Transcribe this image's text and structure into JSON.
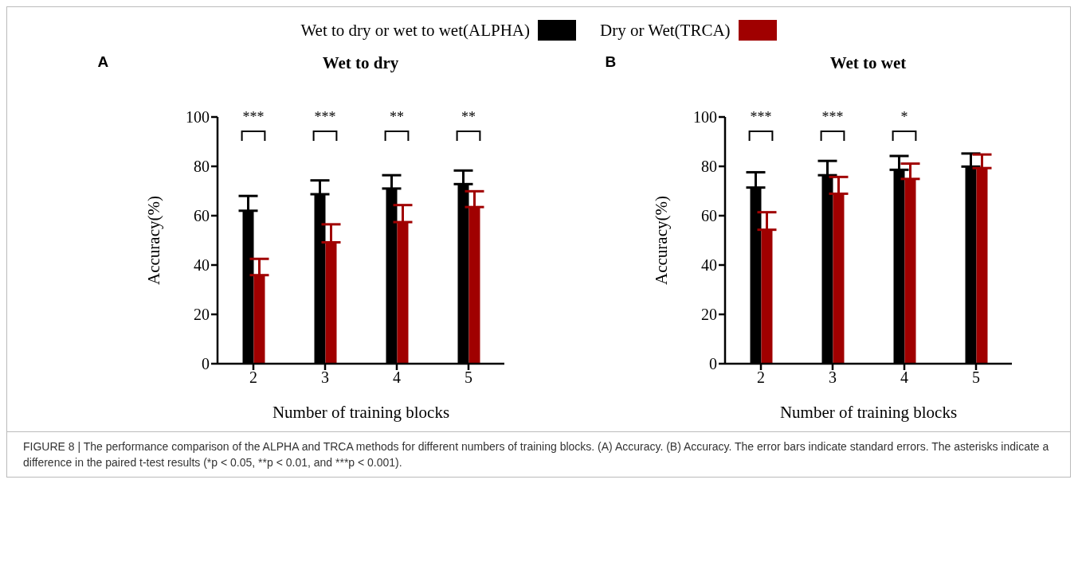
{
  "chart_data": [
    {
      "type": "bar",
      "title": "Wet to dry",
      "xlabel": "Number of training blocks",
      "ylabel": "Accuracy(%)",
      "categories": [
        "2",
        "3",
        "4",
        "5"
      ],
      "series": [
        {
          "name": "Wet to dry or wet to wet(ALPHA)",
          "color": "#000000",
          "values": [
            62.0,
            68.7,
            71.0,
            72.8
          ],
          "errors": [
            [
              62.0,
              68.0
            ],
            [
              68.7,
              74.3
            ],
            [
              71.0,
              76.4
            ],
            [
              72.8,
              78.3
            ]
          ]
        },
        {
          "name": "Dry or Wet(TRCA)",
          "color": "#a00000",
          "values": [
            35.9,
            49.2,
            57.4,
            63.5
          ],
          "errors": [
            [
              35.9,
              42.5
            ],
            [
              49.2,
              56.5
            ],
            [
              57.4,
              64.3
            ],
            [
              63.5,
              69.9
            ]
          ]
        }
      ],
      "ylim": [
        0,
        100
      ],
      "yticks": [
        0,
        20,
        40,
        60,
        80,
        100
      ],
      "grid": false,
      "legend": "top",
      "annotations": [
        "A",
        "***",
        "***",
        "**",
        "**",
        "FIGURE 8 | The performance comparison of the ALPHA and TRCA methods for different numbers of training blocks. (A) Accuracy. (B) Accuracy. The error bars indicate standard errors. The asterisks indicate a difference in the paired t-test results (*p < 0.05, **p < 0.01, and ***p < 0.001)."
      ]
    },
    {
      "type": "bar",
      "title": "Wet to wet",
      "xlabel": "Number of training blocks",
      "ylabel": "Accuracy(%)",
      "categories": [
        "2",
        "3",
        "4",
        "5"
      ],
      "series": [
        {
          "color": "#000000",
          "values": [
            71.4,
            76.4,
            78.6,
            79.9
          ],
          "errors": [
            [
              71.4,
              77.6
            ],
            [
              76.4,
              82.2
            ],
            [
              78.6,
              84.2
            ],
            [
              79.9,
              85.2
            ]
          ]
        },
        {
          "color": "#a00000",
          "values": [
            54.3,
            68.9,
            74.9,
            79.3
          ],
          "errors": [
            [
              54.3,
              61.4
            ],
            [
              68.9,
              75.7
            ],
            [
              74.9,
              81.1
            ],
            [
              79.3,
              84.8
            ]
          ]
        }
      ],
      "ylim": [
        0,
        100
      ],
      "yticks": [
        0,
        20,
        40,
        60,
        80,
        100
      ],
      "grid": false,
      "annotations": [
        "B",
        "***",
        "***",
        "*"
      ]
    }
  ]
}
